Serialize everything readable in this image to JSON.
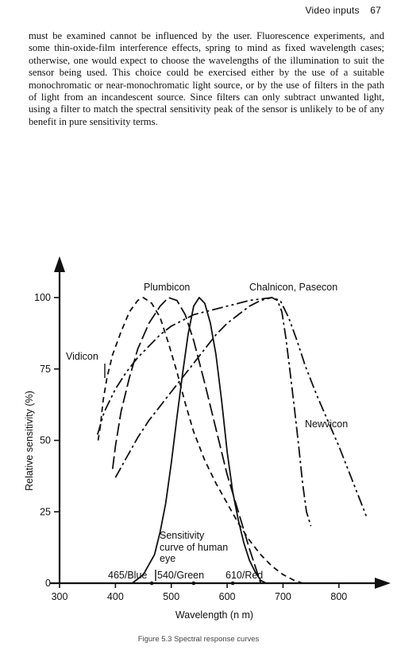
{
  "header": {
    "section": "Video inputs",
    "page_number": "67"
  },
  "paragraph": "must be examined cannot be influenced by the user. Fluorescence experiments, and some thin-oxide-film interference effects, spring to mind as fixed wavelength cases; otherwise, one would expect to choose the wavelengths of the illumination to suit the sensor being used. This choice could be exercised either by the use of a suitable monochromatic or near-monochromatic light source, or by the use of filters in the path of light from an incandescent source. Since filters can only subtract unwanted light, using a filter to match the spectral sensitivity peak of the sensor is unlikely to be of any benefit in pure sensitivity terms.",
  "caption": "Figure 5.3 Spectral response curves",
  "chart_data": {
    "type": "line",
    "xlabel": "Wavelength (n m)",
    "ylabel": "Relative sensitivity (%)",
    "xlim": [
      300,
      850
    ],
    "ylim": [
      0,
      100
    ],
    "x_ticks": [
      300,
      400,
      500,
      600,
      700,
      800
    ],
    "y_ticks": [
      0,
      25,
      50,
      75,
      100
    ],
    "series": [
      {
        "name": "Vidicon",
        "dash": "7,5",
        "points": [
          [
            369,
            50
          ],
          [
            373,
            55
          ],
          [
            378,
            64
          ],
          [
            385,
            72
          ],
          [
            395,
            80
          ],
          [
            410,
            88
          ],
          [
            425,
            95
          ],
          [
            440,
            99
          ],
          [
            450,
            100
          ],
          [
            465,
            98
          ],
          [
            480,
            93
          ],
          [
            495,
            84
          ],
          [
            510,
            74
          ],
          [
            525,
            63
          ],
          [
            540,
            53
          ],
          [
            560,
            43
          ],
          [
            580,
            35
          ],
          [
            600,
            28
          ],
          [
            620,
            21
          ],
          [
            640,
            15
          ],
          [
            660,
            10
          ],
          [
            680,
            6
          ],
          [
            700,
            3
          ],
          [
            720,
            1
          ],
          [
            735,
            0
          ]
        ]
      },
      {
        "name": "Plumbicon",
        "dash": "16,5",
        "points": [
          [
            395,
            40
          ],
          [
            400,
            48
          ],
          [
            410,
            60
          ],
          [
            425,
            72
          ],
          [
            440,
            82
          ],
          [
            460,
            91
          ],
          [
            480,
            97
          ],
          [
            495,
            100
          ],
          [
            510,
            99
          ],
          [
            525,
            94
          ],
          [
            540,
            85
          ],
          [
            560,
            70
          ],
          [
            580,
            54
          ],
          [
            600,
            38
          ],
          [
            620,
            25
          ],
          [
            640,
            12
          ],
          [
            655,
            3
          ],
          [
            660,
            0
          ]
        ]
      },
      {
        "name": "Sensitivity curve of human eye",
        "dash": "",
        "points": [
          [
            430,
            0
          ],
          [
            450,
            3
          ],
          [
            470,
            10
          ],
          [
            480,
            18
          ],
          [
            490,
            28
          ],
          [
            500,
            42
          ],
          [
            510,
            58
          ],
          [
            520,
            73
          ],
          [
            530,
            87
          ],
          [
            540,
            97
          ],
          [
            550,
            100
          ],
          [
            560,
            98
          ],
          [
            570,
            91
          ],
          [
            580,
            80
          ],
          [
            590,
            64
          ],
          [
            600,
            46
          ],
          [
            610,
            32
          ],
          [
            620,
            22
          ],
          [
            630,
            14
          ],
          [
            640,
            8
          ],
          [
            650,
            4
          ],
          [
            660,
            1
          ],
          [
            670,
            0
          ]
        ]
      },
      {
        "name": "Chalnicon, Pasecon",
        "dash": "14,4,3,4",
        "points": [
          [
            400,
            37
          ],
          [
            420,
            44
          ],
          [
            440,
            51
          ],
          [
            460,
            57
          ],
          [
            480,
            62
          ],
          [
            500,
            67
          ],
          [
            520,
            72
          ],
          [
            540,
            77
          ],
          [
            560,
            82
          ],
          [
            580,
            87
          ],
          [
            600,
            91
          ],
          [
            620,
            94
          ],
          [
            640,
            97
          ],
          [
            660,
            99
          ],
          [
            680,
            100
          ],
          [
            690,
            99
          ],
          [
            698,
            95
          ],
          [
            705,
            86
          ],
          [
            712,
            75
          ],
          [
            720,
            62
          ],
          [
            728,
            48
          ],
          [
            735,
            35
          ],
          [
            742,
            25
          ],
          [
            750,
            20
          ]
        ]
      },
      {
        "name": "Newvicon",
        "dash": "14,4,3,4,3,4",
        "points": [
          [
            368,
            52
          ],
          [
            380,
            60
          ],
          [
            400,
            68
          ],
          [
            420,
            74
          ],
          [
            440,
            79
          ],
          [
            460,
            83
          ],
          [
            480,
            87
          ],
          [
            500,
            90
          ],
          [
            520,
            92
          ],
          [
            540,
            94
          ],
          [
            560,
            95
          ],
          [
            580,
            96
          ],
          [
            600,
            97
          ],
          [
            620,
            98
          ],
          [
            640,
            99
          ],
          [
            660,
            99.5
          ],
          [
            680,
            100
          ],
          [
            695,
            99
          ],
          [
            710,
            93
          ],
          [
            725,
            85
          ],
          [
            740,
            76
          ],
          [
            760,
            66
          ],
          [
            780,
            57
          ],
          [
            800,
            48
          ],
          [
            820,
            38
          ],
          [
            840,
            28
          ],
          [
            850,
            23
          ]
        ]
      }
    ],
    "labels": {
      "vidicon": "Vidicon",
      "plumbicon": "Plumbicon",
      "chalnicon": "Chalnicon, Pasecon",
      "newvicon": "Newvicon",
      "eye_line1": "Sensitivity",
      "eye_line2": "curve of human",
      "eye_line3": "eye"
    },
    "markers": [
      {
        "x": 465,
        "label": "465/Blue"
      },
      {
        "x": 540,
        "label": "540/Green"
      },
      {
        "x": 610,
        "label": "610/Red"
      }
    ]
  }
}
